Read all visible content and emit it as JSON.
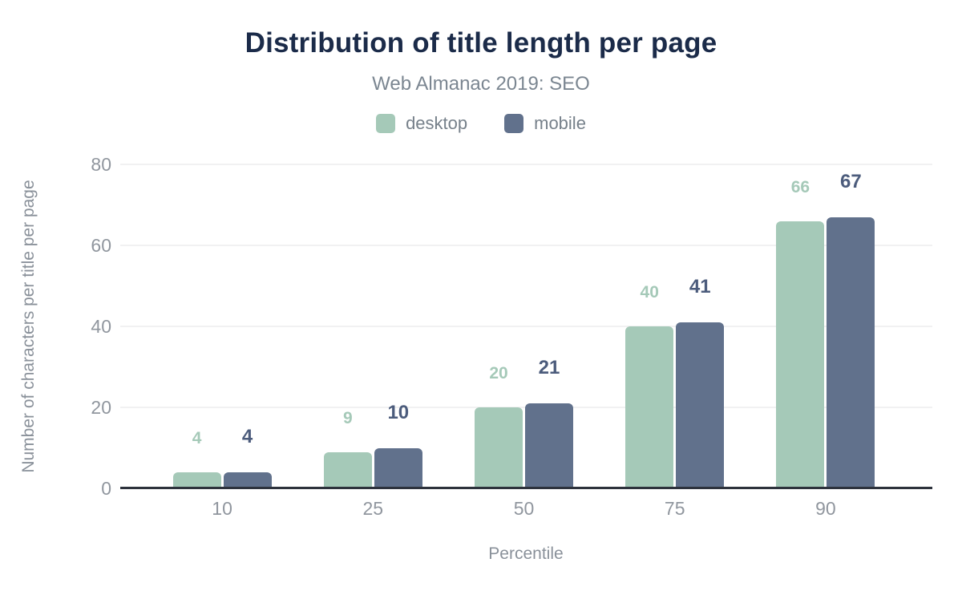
{
  "header": {
    "title": "Distribution of title length per page",
    "subtitle": "Web Almanac 2019: SEO"
  },
  "colors": {
    "title_text": "#1b2b49",
    "subtitle_text": "#7b8691",
    "axis_text": "#90969e",
    "grid_line": "#f1f1f2",
    "baseline": "#2d323c",
    "background": "#ffffff"
  },
  "chart_data": {
    "type": "bar",
    "title": "Distribution of title length per page",
    "subtitle": "Web Almanac 2019: SEO",
    "categories": [
      "10",
      "25",
      "50",
      "75",
      "90"
    ],
    "series": [
      {
        "name": "desktop",
        "color": "#a5c9b8",
        "label_color": "#a5c9b8",
        "values": [
          4,
          9,
          20,
          40,
          66
        ]
      },
      {
        "name": "mobile",
        "color": "#61718c",
        "label_color": "#4c5c7c",
        "values": [
          4,
          10,
          21,
          41,
          67
        ]
      }
    ],
    "xlabel": "Percentile",
    "ylabel": "Number of characters per title per page",
    "ylim": [
      0,
      80
    ],
    "yticks": [
      0,
      20,
      40,
      60,
      80
    ],
    "grid": true,
    "legend_position": "top",
    "data_labels": true
  }
}
